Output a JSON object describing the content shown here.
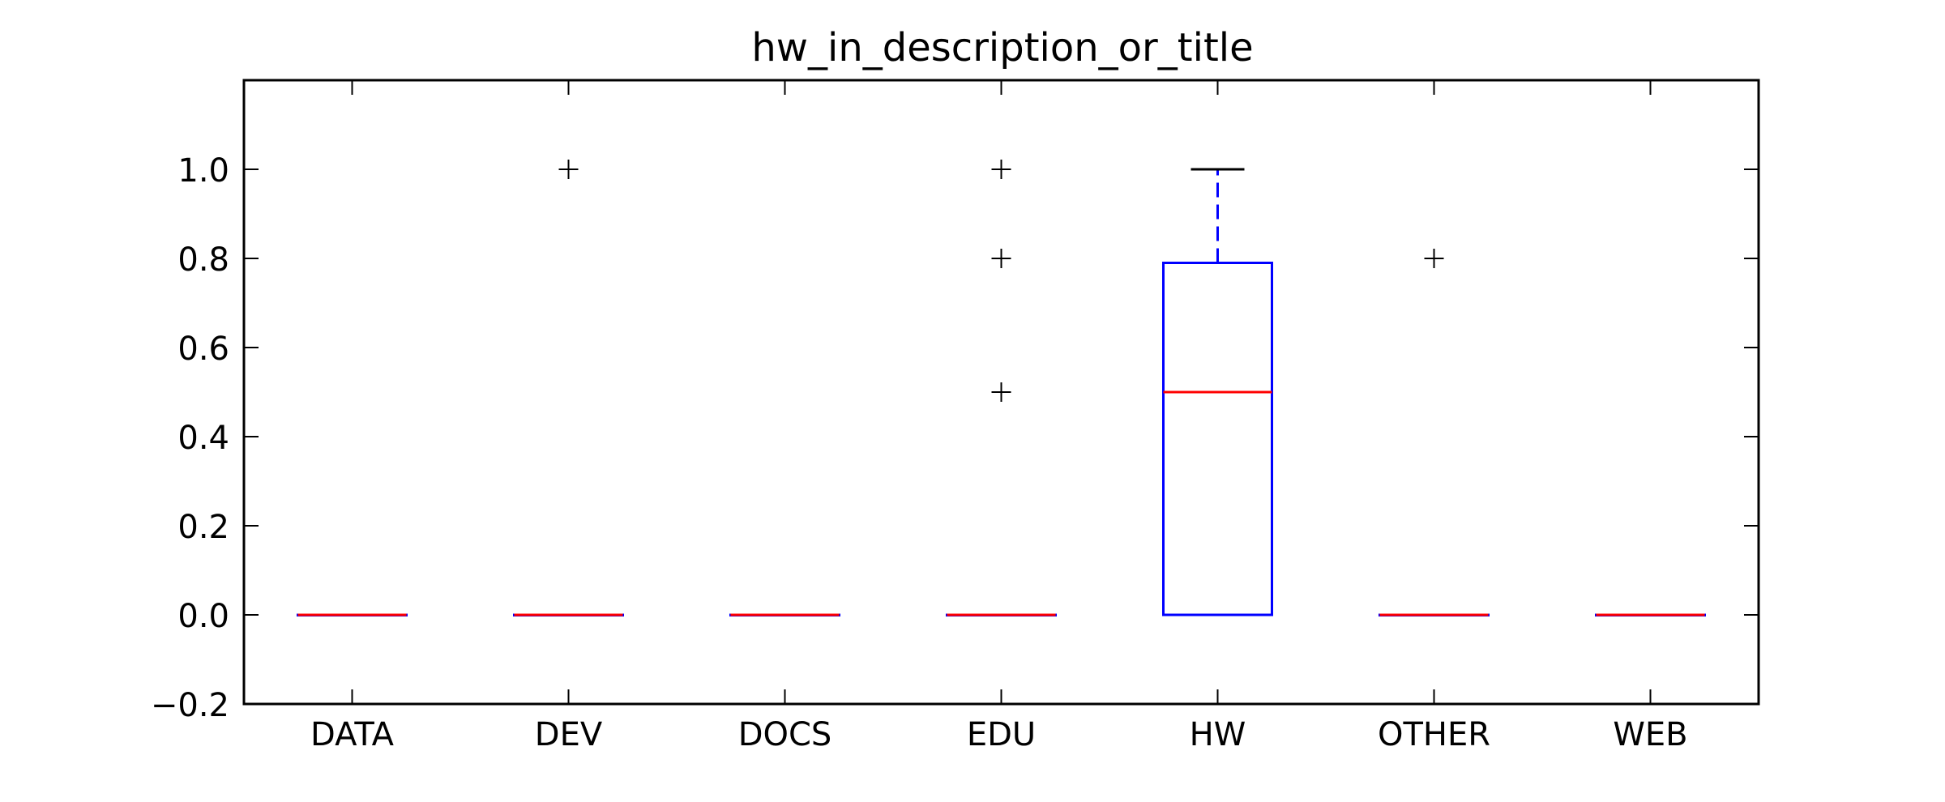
{
  "chart_data": {
    "type": "box",
    "title": "hw_in_description_or_title",
    "xlabel": "",
    "ylabel": "",
    "ylim": [
      -0.2,
      1.2
    ],
    "yticks": [
      -0.2,
      0.0,
      0.2,
      0.4,
      0.6,
      0.8,
      1.0
    ],
    "ytick_labels": [
      "−0.2",
      "0.0",
      "0.2",
      "0.4",
      "0.6",
      "0.8",
      "1.0"
    ],
    "categories": [
      "DATA",
      "DEV",
      "DOCS",
      "EDU",
      "HW",
      "OTHER",
      "WEB"
    ],
    "boxes": [
      {
        "category": "DATA",
        "q1": 0.0,
        "median": 0.0,
        "q3": 0.0,
        "whisker_low": 0.0,
        "whisker_high": 0.0,
        "outliers": []
      },
      {
        "category": "DEV",
        "q1": 0.0,
        "median": 0.0,
        "q3": 0.0,
        "whisker_low": 0.0,
        "whisker_high": 0.0,
        "outliers": [
          1.0
        ]
      },
      {
        "category": "DOCS",
        "q1": 0.0,
        "median": 0.0,
        "q3": 0.0,
        "whisker_low": 0.0,
        "whisker_high": 0.0,
        "outliers": []
      },
      {
        "category": "EDU",
        "q1": 0.0,
        "median": 0.0,
        "q3": 0.0,
        "whisker_low": 0.0,
        "whisker_high": 0.0,
        "outliers": [
          1.0,
          0.8,
          0.5
        ]
      },
      {
        "category": "HW",
        "q1": 0.0,
        "median": 0.5,
        "q3": 0.79,
        "whisker_low": 0.0,
        "whisker_high": 1.0,
        "outliers": []
      },
      {
        "category": "OTHER",
        "q1": 0.0,
        "median": 0.0,
        "q3": 0.0,
        "whisker_low": 0.0,
        "whisker_high": 0.0,
        "outliers": [
          0.8
        ]
      },
      {
        "category": "WEB",
        "q1": 0.0,
        "median": 0.0,
        "q3": 0.0,
        "whisker_low": 0.0,
        "whisker_high": 0.0,
        "outliers": []
      }
    ],
    "grid": false,
    "colors": {
      "box": "#0000ff",
      "median": "#ff0000",
      "whisker_cap": "#000000",
      "outlier": "#000000"
    }
  }
}
